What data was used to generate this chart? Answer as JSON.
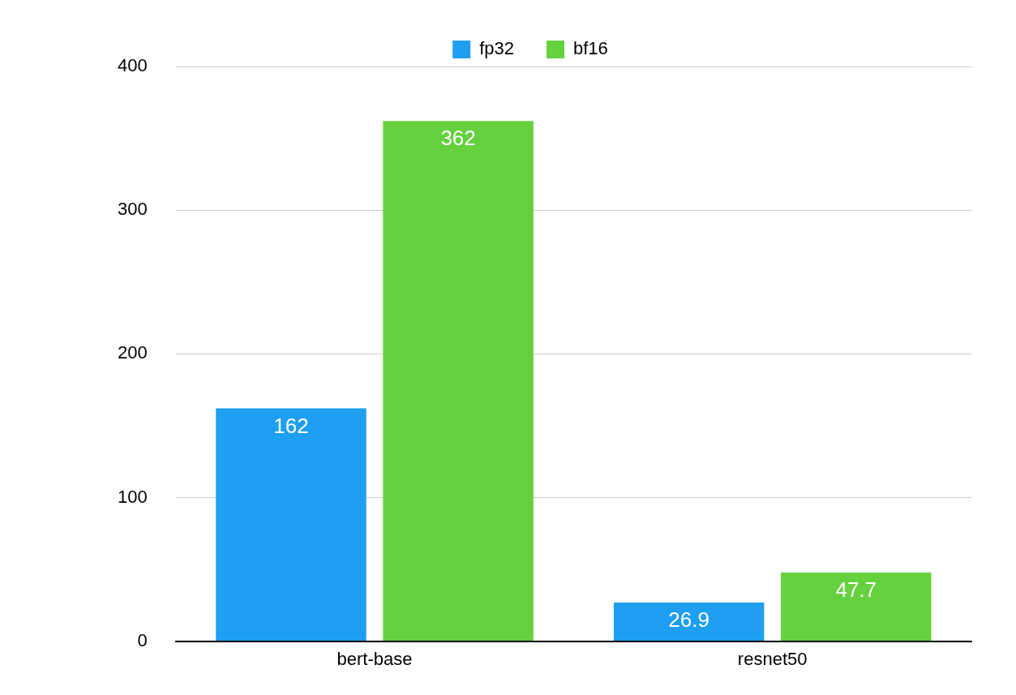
{
  "chart_data": {
    "type": "bar",
    "categories": [
      "bert-base",
      "resnet50"
    ],
    "series": [
      {
        "name": "fp32",
        "color": "#1e9ff2",
        "values": [
          162,
          26.9
        ]
      },
      {
        "name": "bf16",
        "color": "#65d13e",
        "values": [
          362,
          47.7
        ]
      }
    ],
    "ylim": [
      0,
      400
    ],
    "yticks": [
      0,
      100,
      200,
      300,
      400
    ],
    "grid": "y",
    "legend": "top",
    "data_labels": true
  }
}
